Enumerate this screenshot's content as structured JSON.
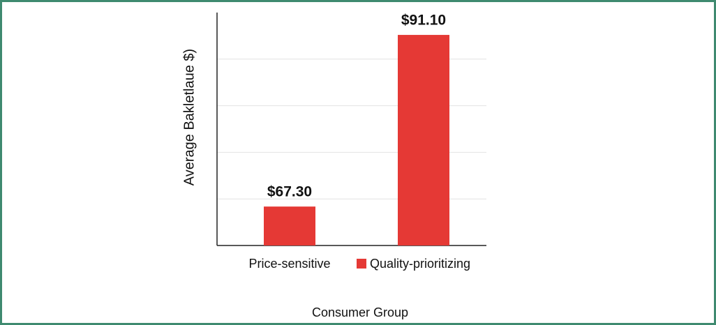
{
  "chart_data": {
    "type": "bar",
    "y_label": "Average Bakletlaue $)",
    "x_label": "Consumer Group",
    "categories": [
      "Price-sensitive",
      "Quality-prioritizing"
    ],
    "values": [
      67.3,
      91.1
    ],
    "value_labels": [
      "$67.30",
      "$91.10"
    ],
    "color": "#e53935",
    "ylim": [
      61.9,
      94.2
    ],
    "grid": true
  }
}
